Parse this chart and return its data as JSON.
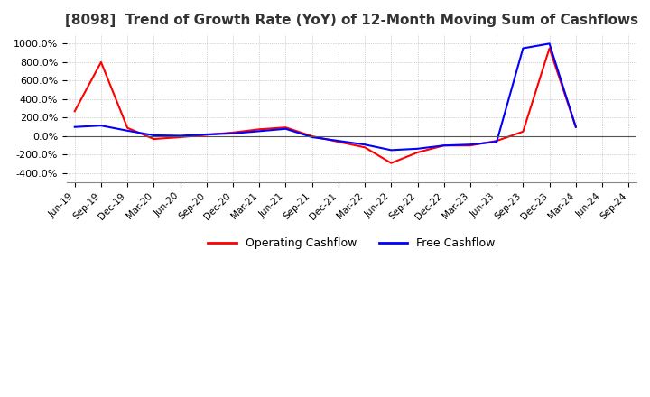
{
  "title": "[8098]  Trend of Growth Rate (YoY) of 12-Month Moving Sum of Cashflows",
  "title_fontsize": 11,
  "ylim": [
    -500,
    1100
  ],
  "yticks": [
    -400,
    -200,
    0,
    200,
    400,
    600,
    800,
    1000
  ],
  "background_color": "#ffffff",
  "grid_color": "#aaaaaa",
  "legend_labels": [
    "Operating Cashflow",
    "Free Cashflow"
  ],
  "legend_colors": [
    "#ff0000",
    "#0000ff"
  ],
  "x_labels": [
    "Jun-19",
    "Sep-19",
    "Dec-19",
    "Mar-20",
    "Jun-20",
    "Sep-20",
    "Dec-20",
    "Mar-21",
    "Jun-21",
    "Sep-21",
    "Dec-21",
    "Mar-22",
    "Jun-22",
    "Sep-22",
    "Dec-22",
    "Mar-23",
    "Jun-23",
    "Sep-23",
    "Dec-23",
    "Mar-24",
    "Jun-24",
    "Sep-24"
  ],
  "operating_cashflow": [
    270,
    800,
    90,
    -30,
    -10,
    15,
    40,
    75,
    95,
    0,
    -60,
    -120,
    -290,
    -175,
    -100,
    -100,
    -50,
    50,
    950,
    100,
    null,
    null
  ],
  "free_cashflow": [
    100,
    115,
    60,
    10,
    5,
    20,
    30,
    55,
    80,
    -10,
    -50,
    -90,
    -150,
    -135,
    -100,
    -90,
    -60,
    950,
    1000,
    100,
    null,
    null
  ]
}
